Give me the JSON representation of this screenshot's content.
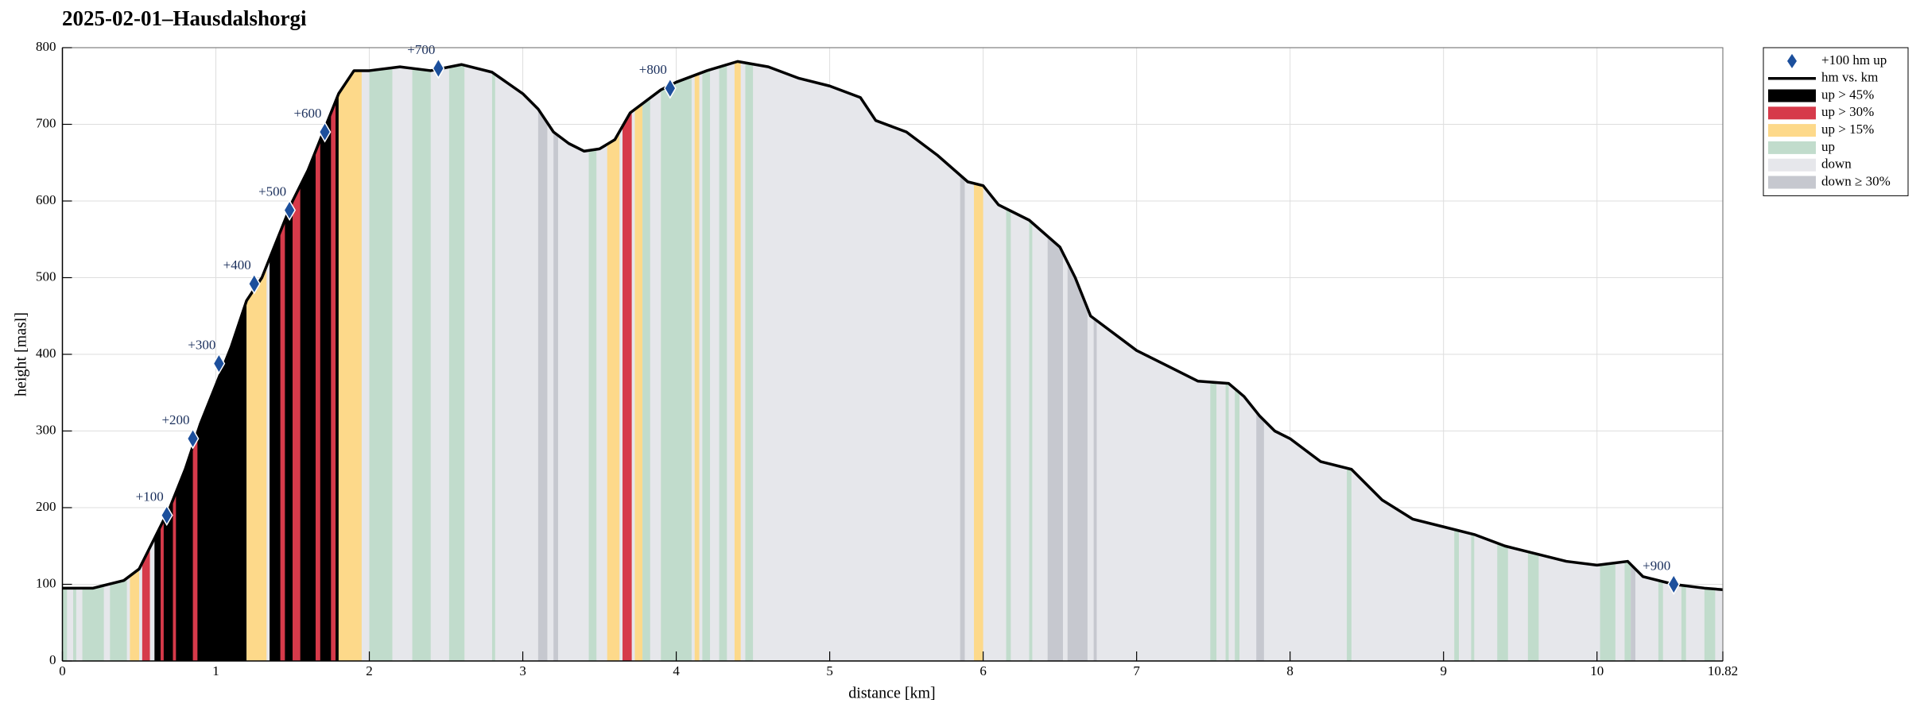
{
  "chart_data": {
    "type": "area",
    "title": "2025-02-01–Hausdalshorgi",
    "xlabel": "distance [km]",
    "ylabel": "height [masl]",
    "xlim": [
      0,
      10.82
    ],
    "ylim": [
      0,
      800
    ],
    "xticks": [
      0,
      1,
      2,
      3,
      4,
      5,
      6,
      7,
      8,
      9,
      10,
      10.82
    ],
    "yticks": [
      0,
      100,
      200,
      300,
      400,
      500,
      600,
      700,
      800
    ],
    "grid": true,
    "legend": "outside right",
    "markers": {
      "name": "+100 hm up",
      "color": "#1c4f9c",
      "x": [
        0.68,
        0.85,
        1.02,
        1.25,
        1.48,
        1.71,
        2.45,
        3.96,
        10.5
      ],
      "values": [
        190,
        290,
        388,
        492,
        588,
        690,
        773,
        747,
        100
      ],
      "labels": [
        "+100",
        "+200",
        "+300",
        "+400",
        "+500",
        "+600",
        "+700",
        "+800",
        "+900"
      ]
    },
    "profile": {
      "name": "hm vs. km",
      "color": "#000000",
      "x": [
        0,
        0.2,
        0.4,
        0.5,
        0.6,
        0.7,
        0.8,
        0.9,
        1.0,
        1.1,
        1.2,
        1.3,
        1.4,
        1.5,
        1.6,
        1.7,
        1.8,
        1.9,
        2.0,
        2.2,
        2.4,
        2.6,
        2.8,
        3.0,
        3.1,
        3.2,
        3.3,
        3.4,
        3.5,
        3.6,
        3.7,
        3.8,
        3.9,
        4.0,
        4.2,
        4.4,
        4.6,
        4.8,
        5.0,
        5.2,
        5.3,
        5.5,
        5.7,
        5.9,
        6.0,
        6.1,
        6.3,
        6.5,
        6.6,
        6.7,
        6.9,
        7.0,
        7.2,
        7.4,
        7.6,
        7.7,
        7.8,
        7.9,
        8.0,
        8.2,
        8.4,
        8.6,
        8.8,
        9.0,
        9.2,
        9.4,
        9.6,
        9.8,
        10.0,
        10.2,
        10.3,
        10.5,
        10.7,
        10.82
      ],
      "values": [
        95,
        95,
        105,
        120,
        160,
        200,
        250,
        310,
        360,
        410,
        470,
        500,
        550,
        600,
        640,
        690,
        740,
        770,
        770,
        775,
        770,
        778,
        768,
        740,
        720,
        690,
        675,
        665,
        668,
        680,
        715,
        730,
        745,
        755,
        770,
        782,
        775,
        760,
        750,
        735,
        705,
        690,
        660,
        625,
        620,
        595,
        575,
        540,
        500,
        450,
        420,
        405,
        385,
        365,
        362,
        345,
        320,
        300,
        290,
        260,
        250,
        210,
        185,
        175,
        165,
        150,
        140,
        130,
        125,
        130,
        110,
        100,
        95,
        93
      ]
    },
    "background": {
      "name": "down",
      "color": "#e6e7eb"
    },
    "bands": [
      {
        "name": "up > 45%",
        "color": "#000000",
        "ranges": [
          [
            0.6,
            1.2
          ],
          [
            1.35,
            1.8
          ]
        ]
      },
      {
        "name": "up > 30%",
        "color": "#d63a4a",
        "ranges": [
          [
            0.52,
            0.57
          ],
          [
            0.64,
            0.66
          ],
          [
            0.72,
            0.74
          ],
          [
            0.85,
            0.88
          ],
          [
            1.42,
            1.45
          ],
          [
            1.5,
            1.55
          ],
          [
            1.65,
            1.68
          ],
          [
            1.75,
            1.78
          ],
          [
            3.65,
            3.71
          ]
        ]
      },
      {
        "name": "up > 15%",
        "color": "#fdd98a",
        "ranges": [
          [
            0.44,
            0.5
          ],
          [
            1.2,
            1.33
          ],
          [
            1.8,
            1.95
          ],
          [
            3.55,
            3.63
          ],
          [
            3.73,
            3.78
          ],
          [
            4.12,
            4.15
          ],
          [
            4.38,
            4.42
          ],
          [
            5.94,
            6.0
          ]
        ]
      },
      {
        "name": "up",
        "color": "#c1dccc",
        "ranges": [
          [
            0,
            0.03
          ],
          [
            0.07,
            0.09
          ],
          [
            0.13,
            0.27
          ],
          [
            0.31,
            0.42
          ],
          [
            2.0,
            2.15
          ],
          [
            2.28,
            2.4
          ],
          [
            2.52,
            2.62
          ],
          [
            2.8,
            2.82
          ],
          [
            3.43,
            3.48
          ],
          [
            3.78,
            3.83
          ],
          [
            3.9,
            4.1
          ],
          [
            4.17,
            4.22
          ],
          [
            4.28,
            4.33
          ],
          [
            4.45,
            4.5
          ],
          [
            6.15,
            6.18
          ],
          [
            6.3,
            6.32
          ],
          [
            7.48,
            7.52
          ],
          [
            7.58,
            7.6
          ],
          [
            7.64,
            7.67
          ],
          [
            8.37,
            8.4
          ],
          [
            9.07,
            9.1
          ],
          [
            9.18,
            9.2
          ],
          [
            9.35,
            9.42
          ],
          [
            9.55,
            9.62
          ],
          [
            10.02,
            10.12
          ],
          [
            10.18,
            10.22
          ],
          [
            10.4,
            10.43
          ],
          [
            10.55,
            10.58
          ],
          [
            10.7,
            10.77
          ]
        ]
      },
      {
        "name": "down ≥ 30%",
        "color": "#c6c8cf",
        "ranges": [
          [
            3.1,
            3.16
          ],
          [
            3.2,
            3.23
          ],
          [
            5.85,
            5.88
          ],
          [
            6.42,
            6.52
          ],
          [
            6.55,
            6.68
          ],
          [
            6.72,
            6.74
          ],
          [
            7.78,
            7.83
          ],
          [
            10.22,
            10.25
          ]
        ]
      }
    ]
  }
}
